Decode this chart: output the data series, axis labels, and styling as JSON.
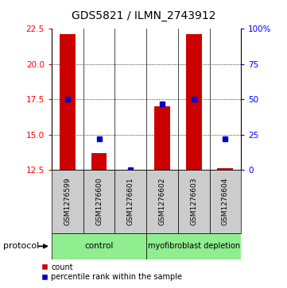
{
  "title": "GDS5821 / ILMN_2743912",
  "samples": [
    "GSM1276599",
    "GSM1276600",
    "GSM1276601",
    "GSM1276602",
    "GSM1276603",
    "GSM1276604"
  ],
  "count_values": [
    22.1,
    13.7,
    12.5,
    17.0,
    22.1,
    12.6
  ],
  "percentile_values": [
    50,
    22,
    0,
    47,
    50,
    22
  ],
  "ylim_left": [
    12.5,
    22.5
  ],
  "ylim_right": [
    0,
    100
  ],
  "yticks_left": [
    12.5,
    15.0,
    17.5,
    20.0,
    22.5
  ],
  "yticks_right": [
    0,
    25,
    50,
    75,
    100
  ],
  "ytick_labels_right": [
    "0",
    "25",
    "50",
    "75",
    "100%"
  ],
  "bar_color": "#CC0000",
  "percentile_color": "#0000CC",
  "background_color": "#ffffff",
  "bar_base": 12.5,
  "sample_box_color": "#CCCCCC",
  "group_color": "#90EE90",
  "ctrl_label": "control",
  "myo_label": "myofibroblast depletion",
  "legend_count": "count",
  "legend_pct": "percentile rank within the sample",
  "protocol_label": "protocol"
}
